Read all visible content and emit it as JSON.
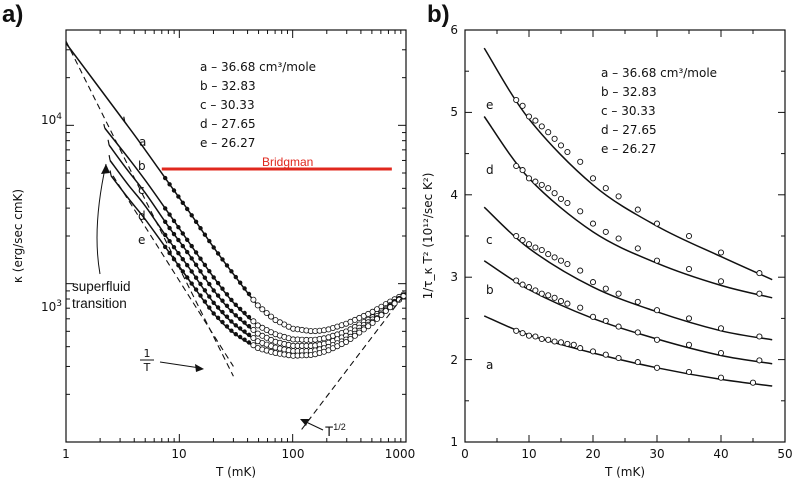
{
  "chart_data": [
    {
      "type": "line",
      "panel_label": "a)",
      "x_scale": "log",
      "y_scale": "log",
      "xlim": [
        1,
        1000
      ],
      "ylim": [
        100,
        40000
      ],
      "x_ticks": [
        "1",
        "10",
        "100",
        "1000"
      ],
      "y_ticks": [
        "10^4",
        "10^3"
      ],
      "xlabel": "T (mK)",
      "ylabel": "κ (erg/sec cmK)",
      "legend": [
        "a – 36.68 cm³/mole",
        "b – 32.83",
        "c – 30.33",
        "d – 27.65",
        "e – 26.27"
      ],
      "series": [
        {
          "name": "a",
          "break_x": 3.3,
          "x": [
            1,
            3.3,
            5,
            8,
            12,
            20,
            30,
            50,
            70,
            100,
            150,
            200,
            300,
            500,
            700,
            1000
          ],
          "y": [
            33000,
            10500,
            7000,
            4350,
            2900,
            1700,
            1150,
            720,
            590,
            520,
            500,
            510,
            560,
            660,
            760,
            870
          ]
        },
        {
          "name": "b",
          "break_x": 2.2,
          "x": [
            2.2,
            3.5,
            5,
            8,
            12,
            20,
            30,
            50,
            70,
            100,
            150,
            200,
            300,
            500,
            700,
            1000
          ],
          "y": [
            9600,
            6300,
            4500,
            2800,
            1850,
            1100,
            760,
            540,
            480,
            445,
            440,
            455,
            500,
            610,
            720,
            860
          ]
        },
        {
          "name": "c",
          "break_x": 2.4,
          "x": [
            2.4,
            3.5,
            5,
            8,
            12,
            20,
            30,
            50,
            70,
            100,
            150,
            200,
            300,
            500,
            700,
            1000
          ],
          "y": [
            7500,
            5200,
            3750,
            2300,
            1550,
            910,
            650,
            480,
            430,
            405,
            405,
            420,
            470,
            590,
            710,
            860
          ]
        },
        {
          "name": "d",
          "break_x": 2.45,
          "x": [
            2.45,
            3.5,
            5,
            8,
            12,
            20,
            30,
            50,
            70,
            100,
            150,
            200,
            300,
            500,
            700,
            1000
          ],
          "y": [
            6000,
            4250,
            3100,
            1900,
            1280,
            760,
            560,
            430,
            395,
            375,
            375,
            395,
            445,
            570,
            700,
            860
          ]
        },
        {
          "name": "e",
          "break_x": 2.5,
          "x": [
            2.5,
            3.5,
            5,
            8,
            12,
            20,
            30,
            50,
            70,
            100,
            150,
            200,
            300,
            500,
            700,
            1000
          ],
          "y": [
            4800,
            3500,
            2550,
            1600,
            1070,
            650,
            490,
            390,
            365,
            350,
            355,
            375,
            430,
            560,
            695,
            860
          ]
        }
      ],
      "bridgman_line": {
        "label": "Bridgman",
        "y": 5300,
        "x_range": [
          7,
          750
        ],
        "color": "#e0281e"
      },
      "annotations": [
        {
          "text": "superfluid transition"
        },
        {
          "text": "T^1/2"
        }
      ]
    },
    {
      "type": "scatter",
      "panel_label": "b)",
      "xlim": [
        0,
        50
      ],
      "ylim": [
        1,
        6
      ],
      "x_ticks": [
        "0",
        "10",
        "20",
        "30",
        "40",
        "50"
      ],
      "y_ticks": [
        "1",
        "2",
        "3",
        "4",
        "5",
        "6"
      ],
      "xlabel": "T (mK)",
      "ylabel": "1/τ_κ T² (10¹²/sec K²)",
      "legend": [
        "a – 36.68 cm³/mole",
        "b – 32.83",
        "c – 30.33",
        "d – 27.65",
        "e – 26.27"
      ],
      "series": [
        {
          "name": "a",
          "fit": {
            "x": [
              3,
              10,
              20,
              30,
              40,
              48
            ],
            "y": [
              2.53,
              2.3,
              2.08,
              1.9,
              1.76,
              1.68
            ]
          },
          "points_x": [
            8,
            9,
            10,
            11,
            12,
            13,
            14,
            15,
            16,
            17,
            18,
            20,
            22,
            24,
            27,
            30,
            35,
            40,
            45
          ],
          "points_y": [
            2.35,
            2.32,
            2.29,
            2.28,
            2.25,
            2.24,
            2.22,
            2.21,
            2.19,
            2.18,
            2.14,
            2.1,
            2.06,
            2.02,
            1.97,
            1.9,
            1.85,
            1.78,
            1.72
          ]
        },
        {
          "name": "b",
          "fit": {
            "x": [
              3,
              10,
              20,
              30,
              40,
              48
            ],
            "y": [
              3.2,
              2.85,
              2.5,
              2.25,
              2.05,
              1.95
            ]
          },
          "points_x": [
            8,
            9,
            10,
            11,
            12,
            13,
            14,
            15,
            16,
            18,
            20,
            22,
            24,
            27,
            30,
            35,
            40,
            46
          ],
          "points_y": [
            2.96,
            2.91,
            2.88,
            2.84,
            2.8,
            2.78,
            2.75,
            2.71,
            2.68,
            2.63,
            2.52,
            2.47,
            2.4,
            2.33,
            2.24,
            2.18,
            2.08,
            1.99
          ]
        },
        {
          "name": "c",
          "fit": {
            "x": [
              3,
              10,
              20,
              30,
              40,
              48
            ],
            "y": [
              3.85,
              3.35,
              2.88,
              2.58,
              2.35,
              2.24
            ]
          },
          "points_x": [
            8,
            9,
            10,
            11,
            12,
            13,
            14,
            15,
            16,
            18,
            20,
            22,
            24,
            27,
            30,
            35,
            40,
            46
          ],
          "points_y": [
            3.5,
            3.45,
            3.4,
            3.36,
            3.33,
            3.28,
            3.24,
            3.2,
            3.16,
            3.08,
            2.94,
            2.86,
            2.8,
            2.7,
            2.6,
            2.5,
            2.38,
            2.28
          ]
        },
        {
          "name": "d",
          "fit": {
            "x": [
              3,
              10,
              20,
              30,
              40,
              48
            ],
            "y": [
              4.95,
              4.2,
              3.55,
              3.17,
              2.9,
              2.75
            ]
          },
          "points_x": [
            8,
            9,
            10,
            11,
            12,
            13,
            14,
            15,
            16,
            18,
            20,
            22,
            24,
            27,
            30,
            35,
            40,
            46
          ],
          "points_y": [
            4.35,
            4.3,
            4.2,
            4.16,
            4.12,
            4.08,
            4.02,
            3.95,
            3.9,
            3.8,
            3.65,
            3.55,
            3.47,
            3.35,
            3.2,
            3.1,
            2.95,
            2.8
          ]
        },
        {
          "name": "e",
          "fit": {
            "x": [
              3,
              10,
              20,
              30,
              40,
              48
            ],
            "y": [
              5.78,
              4.92,
              4.12,
              3.62,
              3.25,
              2.97
            ]
          },
          "points_x": [
            8,
            9,
            10,
            11,
            12,
            13,
            14,
            15,
            16,
            18,
            20,
            22,
            24,
            27,
            30,
            35,
            40,
            46
          ],
          "points_y": [
            5.15,
            5.08,
            4.95,
            4.9,
            4.83,
            4.76,
            4.68,
            4.6,
            4.52,
            4.4,
            4.2,
            4.08,
            3.98,
            3.82,
            3.65,
            3.5,
            3.3,
            3.05
          ]
        }
      ]
    }
  ]
}
